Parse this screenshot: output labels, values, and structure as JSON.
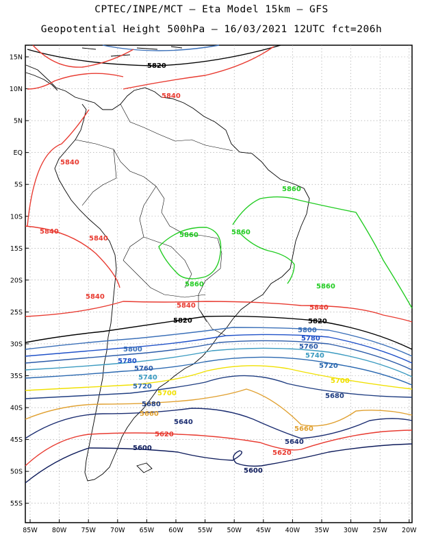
{
  "title_line1": "CPTEC/INPE/MCT – Eta Model 15km – GFS",
  "title_line2": "Geopotential Height 500hPa – 16/03/2021 12UTC fct=206h",
  "lat_ticks": [
    "15N",
    "10N",
    "5N",
    "EQ",
    "5S",
    "10S",
    "15S",
    "20S",
    "25S",
    "30S",
    "35S",
    "40S",
    "45S",
    "50S",
    "55S"
  ],
  "lon_ticks": [
    "85W",
    "80W",
    "75W",
    "70W",
    "65W",
    "60W",
    "55W",
    "50W",
    "45W",
    "40W",
    "35W",
    "30W",
    "25W",
    "20W"
  ],
  "contour_labels": [
    {
      "text": "5820",
      "color": "#000000"
    },
    {
      "text": "5840",
      "color": "#e83a30"
    },
    {
      "text": "5840",
      "color": "#e83a30"
    },
    {
      "text": "5840",
      "color": "#e83a30"
    },
    {
      "text": "5840",
      "color": "#e83a30"
    },
    {
      "text": "5840",
      "color": "#e83a30"
    },
    {
      "text": "5840",
      "color": "#e83a30"
    },
    {
      "text": "5840",
      "color": "#e83a30"
    },
    {
      "text": "5860",
      "color": "#22cc22"
    },
    {
      "text": "5860",
      "color": "#22cc22"
    },
    {
      "text": "5860",
      "color": "#22cc22"
    },
    {
      "text": "5860",
      "color": "#22cc22"
    },
    {
      "text": "5860",
      "color": "#22cc22"
    },
    {
      "text": "5820",
      "color": "#000000"
    },
    {
      "text": "5820",
      "color": "#000000"
    },
    {
      "text": "5800",
      "color": "#3a6fb8"
    },
    {
      "text": "5800",
      "color": "#3a6fb8"
    },
    {
      "text": "5780",
      "color": "#1e50c8"
    },
    {
      "text": "5780",
      "color": "#1e50c8"
    },
    {
      "text": "5760",
      "color": "#2a5aa8"
    },
    {
      "text": "5760",
      "color": "#2a5aa8"
    },
    {
      "text": "5740",
      "color": "#3a9ac0"
    },
    {
      "text": "5740",
      "color": "#3a9ac0"
    },
    {
      "text": "5720",
      "color": "#2a68b0"
    },
    {
      "text": "5720",
      "color": "#2a68b0"
    },
    {
      "text": "5700",
      "color": "#f0e000"
    },
    {
      "text": "5700",
      "color": "#f0e000"
    },
    {
      "text": "5680",
      "color": "#1e3c80"
    },
    {
      "text": "5680",
      "color": "#1e3c80"
    },
    {
      "text": "5660",
      "color": "#e0a030"
    },
    {
      "text": "5660",
      "color": "#e0a030"
    },
    {
      "text": "5640",
      "color": "#1a2c70"
    },
    {
      "text": "5640",
      "color": "#1a2c70"
    },
    {
      "text": "5620",
      "color": "#e83a30"
    },
    {
      "text": "5620",
      "color": "#e83a30"
    },
    {
      "text": "5600",
      "color": "#0c1a5a"
    },
    {
      "text": "5600",
      "color": "#0c1a5a"
    }
  ]
}
